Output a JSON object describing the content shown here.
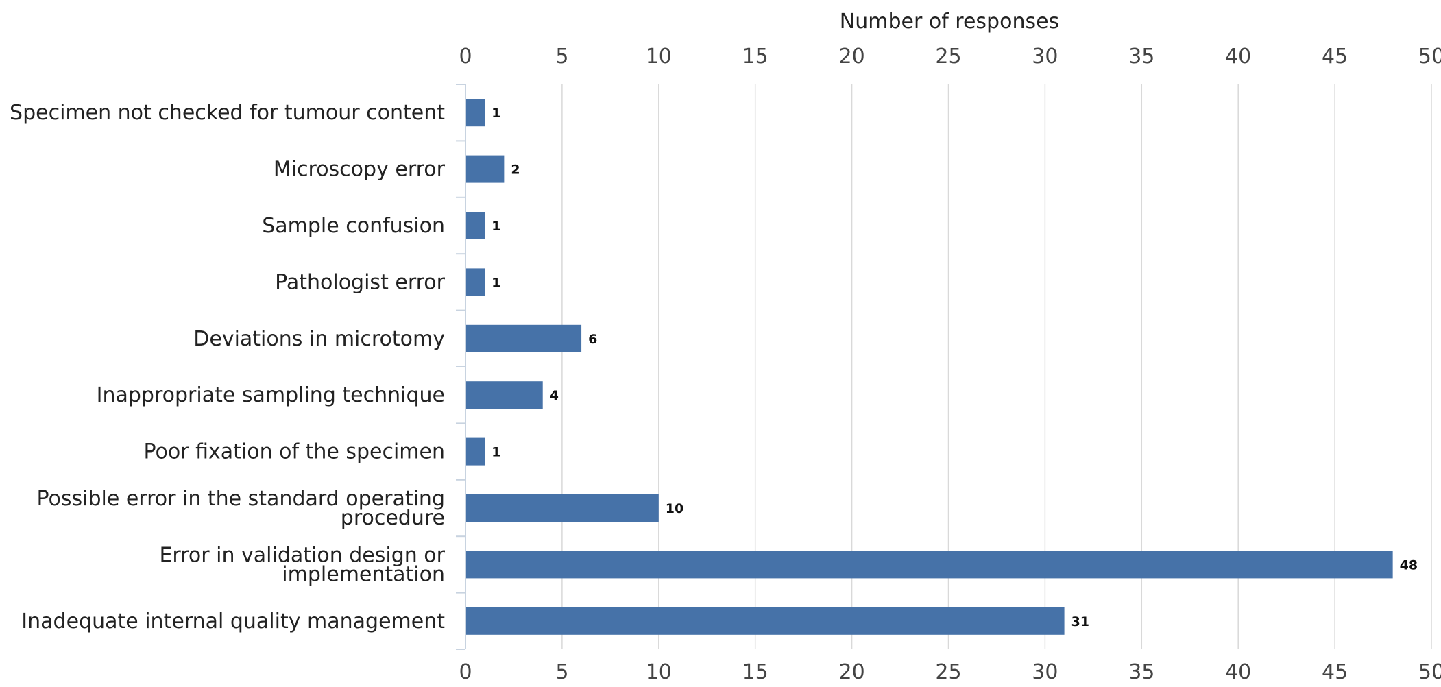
{
  "chart_data": {
    "type": "bar",
    "orientation": "horizontal",
    "xlabel": "Number of responses",
    "xlim": [
      0,
      50
    ],
    "x_ticks": [
      0,
      5,
      10,
      15,
      20,
      25,
      30,
      35,
      40,
      45,
      50
    ],
    "categories": [
      "Specimen not checked for tumour content",
      "Microscopy error",
      "Sample confusion",
      "Pathologist error",
      "Deviations in microtomy",
      "Inappropriate sampling technique",
      "Poor fixation of the specimen",
      "Possible error in the standard operating procedure",
      "Error in validation design or implementation",
      "Inadequate internal quality management"
    ],
    "values": [
      1,
      2,
      1,
      1,
      6,
      4,
      1,
      10,
      48,
      31
    ],
    "data_labels": [
      "1",
      "2",
      "1",
      "1",
      "6",
      "4",
      "1",
      "10",
      "48",
      "31"
    ],
    "bar_color": "#4672a8",
    "grid": true,
    "axis_position": "top-and-bottom"
  }
}
